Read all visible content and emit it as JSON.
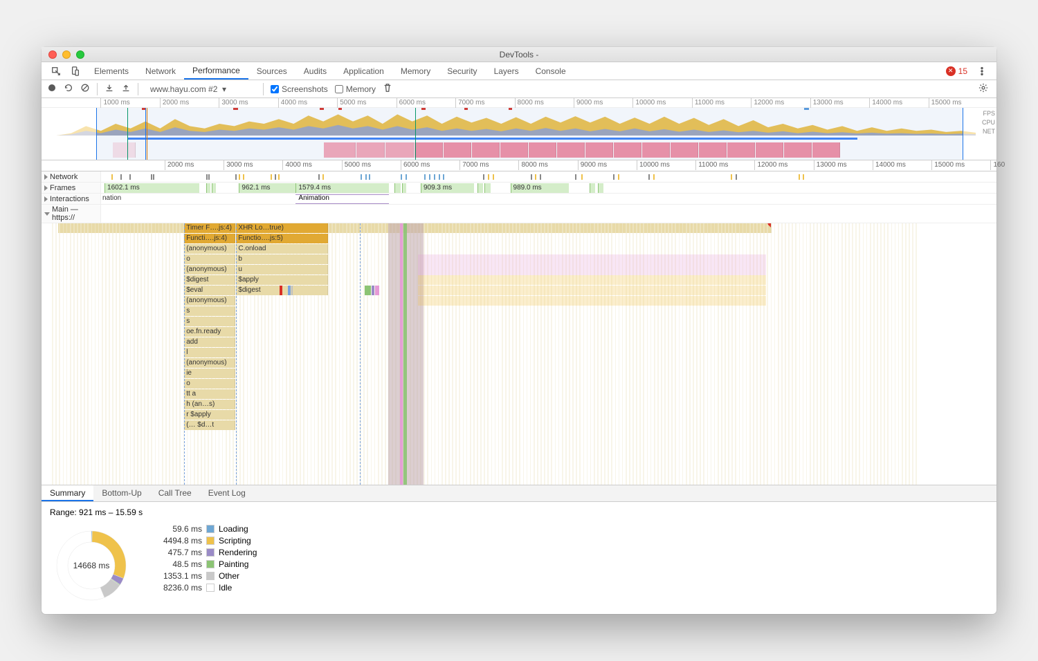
{
  "window": {
    "title": "DevTools -"
  },
  "tabs": {
    "items": [
      "Elements",
      "Network",
      "Performance",
      "Sources",
      "Audits",
      "Application",
      "Memory",
      "Security",
      "Layers",
      "Console"
    ],
    "active_index": 2,
    "error_count": "15"
  },
  "toolbar": {
    "recording_label": "www.hayu.com #2",
    "screenshots_label": "Screenshots",
    "screenshots_checked": true,
    "memory_label": "Memory",
    "memory_checked": false
  },
  "overview": {
    "labels": {
      "fps": "FPS",
      "cpu": "CPU",
      "net": "NET"
    },
    "time_range_ms": [
      0,
      15800
    ],
    "ruler_ticks": [
      "1000 ms",
      "2000 ms",
      "3000 ms",
      "4000 ms",
      "5000 ms",
      "6000 ms",
      "7000 ms",
      "8000 ms",
      "9000 ms",
      "10000 ms",
      "11000 ms",
      "12000 ms",
      "13000 ms",
      "14000 ms",
      "15000 ms"
    ],
    "selection_ms": [
      921,
      15590
    ],
    "red_marks": [
      {
        "s": 1700,
        "e": 1760,
        "c": "#d93025"
      },
      {
        "s": 3240,
        "e": 3320,
        "c": "#d93025"
      },
      {
        "s": 4710,
        "e": 4770,
        "c": "#d93025"
      },
      {
        "s": 5020,
        "e": 5080,
        "c": "#d93025"
      },
      {
        "s": 6430,
        "e": 6500,
        "c": "#d93025"
      },
      {
        "s": 7150,
        "e": 7210,
        "c": "#d93025"
      },
      {
        "s": 7900,
        "e": 7960,
        "c": "#d93025"
      },
      {
        "s": 12900,
        "e": 12980,
        "c": "#59d"
      }
    ],
    "cpu_profile": [
      0,
      0,
      0.1,
      0.4,
      0.2,
      0.5,
      0.3,
      0.6,
      0.3,
      0.7,
      0.4,
      0.3,
      0.5,
      0.4,
      0.6,
      0.5,
      0.7,
      0.5,
      0.85,
      0.6,
      0.9,
      0.6,
      0.85,
      0.5,
      0.9,
      0.6,
      0.85,
      0.5,
      0.8,
      0.55,
      0.75,
      0.5,
      0.78,
      0.5,
      0.8,
      0.55,
      0.82,
      0.55,
      0.8,
      0.5,
      0.76,
      0.5,
      0.8,
      0.5,
      0.75,
      0.45,
      0.7,
      0.4,
      0.65,
      0.35,
      0.5,
      0.3,
      0.45,
      0.25,
      0.4,
      0.2,
      0.35,
      0.2,
      0.3,
      0.2,
      0.25,
      0.15,
      0.2,
      0.12
    ],
    "cpu_profile2": [
      0,
      0,
      0.05,
      0.2,
      0.1,
      0.25,
      0.15,
      0.3,
      0.15,
      0.35,
      0.2,
      0.15,
      0.25,
      0.2,
      0.3,
      0.25,
      0.35,
      0.25,
      0.4,
      0.3,
      0.45,
      0.3,
      0.4,
      0.25,
      0.4,
      0.25,
      0.35,
      0.2,
      0.3,
      0.2,
      0.28,
      0.18,
      0.3,
      0.2,
      0.32,
      0.2,
      0.3,
      0.18,
      0.28,
      0.18,
      0.3,
      0.18,
      0.27,
      0.16,
      0.25,
      0.15,
      0.22,
      0.14,
      0.2,
      0.12,
      0.18,
      0.1,
      0.16,
      0.1,
      0.14,
      0.09,
      0.12,
      0.08,
      0.1,
      0.07,
      0.09,
      0.06,
      0.08,
      0.05
    ],
    "net_blue": {
      "s": 1450,
      "e": 13800,
      "c": "#3b82f6"
    },
    "filmstrip": [
      {
        "s": 4780,
        "e": 5320,
        "c": "#f6a8b7"
      },
      {
        "s": 5320,
        "e": 5820,
        "c": "#f6a8b7"
      },
      {
        "s": 5820,
        "e": 6310,
        "c": "#f6a8b7"
      },
      {
        "s": 6310,
        "e": 6800,
        "c": "#f38fa3"
      },
      {
        "s": 6800,
        "e": 7280,
        "c": "#f38fa3"
      },
      {
        "s": 7280,
        "e": 7760,
        "c": "#f38fa3"
      },
      {
        "s": 7760,
        "e": 8240,
        "c": "#f38fa3"
      },
      {
        "s": 8240,
        "e": 8720,
        "c": "#f38fa3"
      },
      {
        "s": 8720,
        "e": 9200,
        "c": "#f38fa3"
      },
      {
        "s": 9200,
        "e": 9680,
        "c": "#f38fa3"
      },
      {
        "s": 9680,
        "e": 10160,
        "c": "#f38fa3"
      },
      {
        "s": 10160,
        "e": 10640,
        "c": "#f38fa3"
      },
      {
        "s": 10640,
        "e": 11120,
        "c": "#f38fa3"
      },
      {
        "s": 11120,
        "e": 11600,
        "c": "#f38fa3"
      },
      {
        "s": 11600,
        "e": 12080,
        "c": "#f38fa3"
      },
      {
        "s": 12080,
        "e": 12560,
        "c": "#f38fa3"
      },
      {
        "s": 12560,
        "e": 13040,
        "c": "#f38fa3"
      },
      {
        "s": 13040,
        "e": 13520,
        "c": "#f38fa3"
      },
      {
        "s": 1200,
        "e": 1600,
        "c": "#fce3e8"
      }
    ]
  },
  "detail_ruler": {
    "range_ms": [
      921,
      16100
    ],
    "ticks": [
      "2000 ms",
      "3000 ms",
      "4000 ms",
      "5000 ms",
      "6000 ms",
      "7000 ms",
      "8000 ms",
      "9000 ms",
      "10000 ms",
      "11000 ms",
      "12000 ms",
      "13000 ms",
      "14000 ms",
      "15000 ms",
      "160"
    ]
  },
  "tracks": {
    "network": {
      "label": "Network",
      "marks": [
        1100,
        1250,
        1400,
        1760,
        1800,
        2700,
        2740,
        3200,
        3260,
        3320,
        3800,
        3860,
        3920,
        4600,
        4680,
        5320,
        5400,
        5460,
        6000,
        6080,
        6400,
        6480,
        6560,
        6640,
        6720,
        7400,
        7480,
        7560,
        8200,
        8280,
        8360,
        8960,
        9060,
        9600,
        9680,
        10200,
        10280,
        11600,
        11680,
        12740,
        12820
      ]
    },
    "frames": {
      "label": "Frames",
      "items": [
        {
          "s": 980,
          "e": 2582,
          "label": "1602.1 ms"
        },
        {
          "s": 3260,
          "e": 4222,
          "label": "962.1 ms"
        },
        {
          "s": 4222,
          "e": 5801,
          "label": "1579.4 ms"
        },
        {
          "s": 6340,
          "e": 7249,
          "label": "909.3 ms"
        },
        {
          "s": 7860,
          "e": 8849,
          "label": "989.0 ms"
        }
      ],
      "small": [
        {
          "s": 2700,
          "e": 2780
        },
        {
          "s": 2800,
          "e": 2870
        },
        {
          "s": 5900,
          "e": 6000
        },
        {
          "s": 6020,
          "e": 6100
        },
        {
          "s": 7300,
          "e": 7400
        },
        {
          "s": 7420,
          "e": 7520
        },
        {
          "s": 9200,
          "e": 9300
        },
        {
          "s": 9340,
          "e": 9440
        }
      ]
    },
    "interactions": {
      "label": "Interactions",
      "animation_label": "Animation",
      "animation": {
        "s": 4222,
        "e": 5801
      }
    },
    "main": {
      "label": "Main — https://"
    }
  },
  "flame": {
    "range_ms": [
      921,
      16100
    ],
    "colors": {
      "task": "#e8daa8",
      "script": "#efc24b",
      "script_dark": "#e1a933",
      "render": "#9a8bc7",
      "paint": "#8cc474",
      "system": "#c0c0c0",
      "pink": "#e59ad6",
      "blue": "#7aa3e0",
      "teal": "#88c9c1",
      "grey": "#d8d8d8"
    },
    "background_stripes": [
      {
        "s": 1760,
        "e": 1770,
        "c": "#d93025"
      },
      {
        "s": 3300,
        "e": 3310,
        "c": "#d93025"
      },
      {
        "s": 921,
        "e": 16100,
        "c": "#f7f7f7"
      }
    ],
    "col1": {
      "s": 3340,
      "e": 4200
    },
    "col2": {
      "s": 4222,
      "e": 5780
    },
    "col3": {
      "s": 6800,
      "e": 13200
    },
    "stack1": [
      "Timer F….js:4)",
      "Functi….js:4)",
      "(anonymous)",
      "o",
      "(anonymous)",
      "$digest",
      "$eval",
      "(anonymous)",
      "s",
      "s",
      "oe.fn.ready",
      "add",
      "l",
      "(anonymous)",
      "ie",
      "o",
      "tt        a",
      "h       (an…s)",
      "r       $apply",
      "(…      $d…t"
    ],
    "stack2": [
      "XHR Lo…true)",
      "Functio….js:5)",
      "C.onload",
      "b",
      "u",
      "$apply",
      "$digest"
    ]
  },
  "bottom_tabs": {
    "items": [
      "Summary",
      "Bottom-Up",
      "Call Tree",
      "Event Log"
    ],
    "active_index": 0
  },
  "summary": {
    "range_label": "Range: 921 ms – 15.59 s",
    "total_label": "14668 ms",
    "categories": [
      {
        "name": "Loading",
        "value": "59.6 ms",
        "ms": 59.6,
        "color": "#6ea7d4"
      },
      {
        "name": "Scripting",
        "value": "4494.8 ms",
        "ms": 4494.8,
        "color": "#efc24b"
      },
      {
        "name": "Rendering",
        "value": "475.7 ms",
        "ms": 475.7,
        "color": "#9a8bc7"
      },
      {
        "name": "Painting",
        "value": "48.5 ms",
        "ms": 48.5,
        "color": "#8cc474"
      },
      {
        "name": "Other",
        "value": "1353.1 ms",
        "ms": 1353.1,
        "color": "#c9c9c9"
      },
      {
        "name": "Idle",
        "value": "8236.0 ms",
        "ms": 8236.0,
        "color": "#ffffff"
      }
    ]
  },
  "vlines": [
    {
      "ms": 1760,
      "c": "#1a73e8"
    },
    {
      "ms": 1780,
      "c": "#d97706"
    },
    {
      "ms": 6320,
      "c": "#059669"
    },
    {
      "ms": 1450,
      "c": "#059669"
    }
  ]
}
